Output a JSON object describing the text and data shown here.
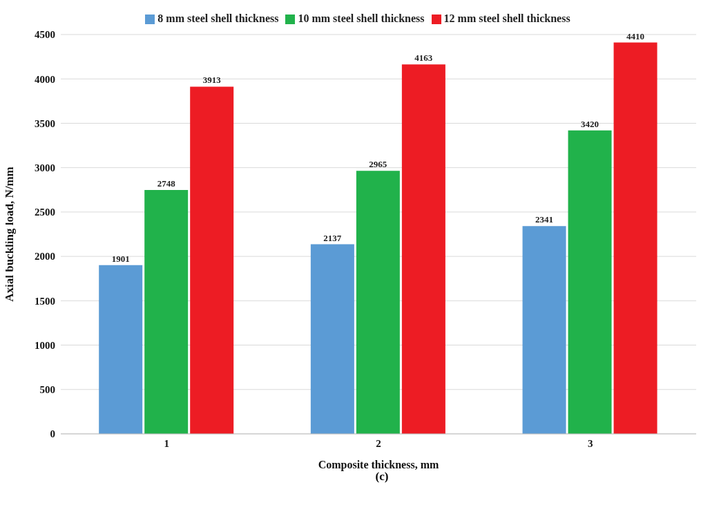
{
  "chart_data": {
    "type": "bar",
    "xlabel": "Composite thickness, mm",
    "ylabel": "Axial buckling load, N/mm",
    "categories": [
      "1",
      "2",
      "3"
    ],
    "series": [
      {
        "name": "8 mm steel shell thickness",
        "color": "#5b9bd5",
        "values": [
          1901,
          2137,
          2341
        ]
      },
      {
        "name": "10 mm steel shell thickness",
        "color": "#21b24b",
        "values": [
          2748,
          2965,
          3420
        ]
      },
      {
        "name": "12 mm steel shell thickness",
        "color": "#ed1c24",
        "values": [
          3913,
          4163,
          4410
        ]
      }
    ],
    "ylim": [
      0,
      4500
    ],
    "yticks": [
      0,
      500,
      1000,
      1500,
      2000,
      2500,
      3000,
      3500,
      4000,
      4500
    ],
    "grid": "y",
    "legend": "top",
    "data_labels": true,
    "annotations": [
      "(c)"
    ]
  }
}
